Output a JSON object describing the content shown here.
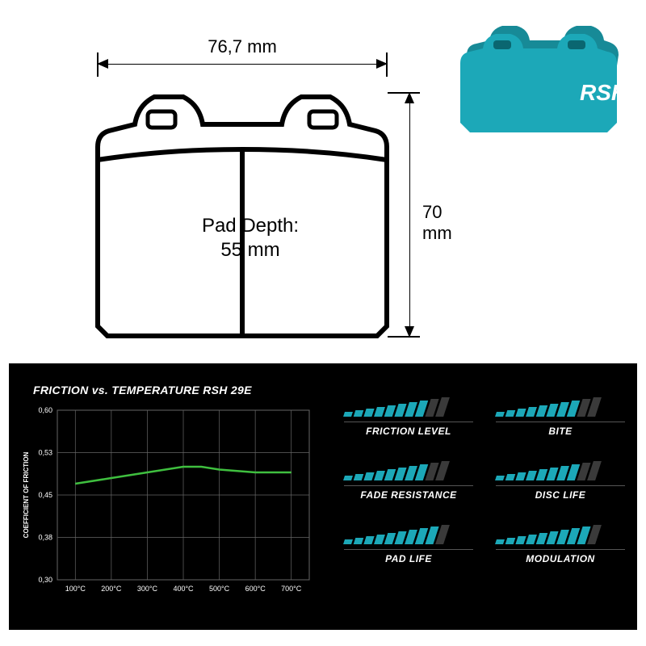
{
  "diagram": {
    "width_label": "76,7 mm",
    "height_label": "70 mm",
    "depth_label_line1": "Pad Depth:",
    "depth_label_line2": "55 mm",
    "stroke": "#000000",
    "stroke_width": 6
  },
  "product": {
    "brand": "RSH",
    "body_color": "#1ca8b8",
    "body_shade": "#178a97",
    "friction_color": "#1a1a1a",
    "text_color": "#ffffff"
  },
  "chart": {
    "title": "FRICTION vs. TEMPERATURE RSH 29E",
    "y_label": "COEFFICIENT OF FRICTION",
    "y_ticks": [
      "0,60",
      "0,53",
      "0,45",
      "0,38",
      "0,30"
    ],
    "x_ticks": [
      "100°C",
      "200°C",
      "300°C",
      "400°C",
      "500°C",
      "600°C",
      "700°C"
    ],
    "grid_color": "#666666",
    "line_color": "#3fbf3f",
    "data": [
      {
        "x": 100,
        "y": 0.47
      },
      {
        "x": 200,
        "y": 0.48
      },
      {
        "x": 300,
        "y": 0.49
      },
      {
        "x": 400,
        "y": 0.5
      },
      {
        "x": 450,
        "y": 0.5
      },
      {
        "x": 500,
        "y": 0.495
      },
      {
        "x": 600,
        "y": 0.49
      },
      {
        "x": 700,
        "y": 0.49
      }
    ],
    "y_min": 0.3,
    "y_max": 0.6,
    "x_min": 50,
    "x_max": 750
  },
  "ratings": {
    "fill_color": "#1ca8b8",
    "empty_color": "#3a3a3a",
    "max": 10,
    "bar_heights": [
      6,
      8,
      10,
      12,
      14,
      16,
      18,
      20,
      22,
      24
    ],
    "items": [
      {
        "label": "FRICTION LEVEL",
        "value": 8
      },
      {
        "label": "BITE",
        "value": 8
      },
      {
        "label": "FADE RESISTANCE",
        "value": 8
      },
      {
        "label": "DISC LIFE",
        "value": 8
      },
      {
        "label": "PAD LIFE",
        "value": 9
      },
      {
        "label": "MODULATION",
        "value": 9
      }
    ]
  }
}
